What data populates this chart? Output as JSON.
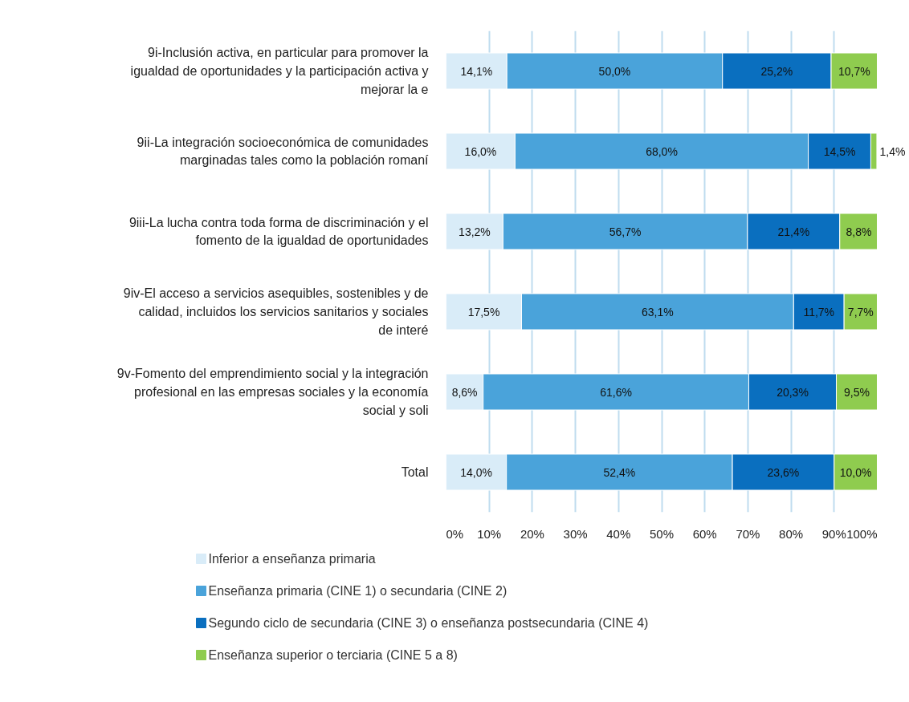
{
  "chart_data": {
    "type": "bar",
    "orientation": "horizontal",
    "stacked": true,
    "categories": [
      "9i-Inclusión activa, en particular para promover la igualdad de oportunidades y la participación activa y mejorar la e",
      "9ii-La integración socioeconómica de comunidades marginadas tales como la población romaní",
      "9iii-La lucha contra toda forma de discriminación y el fomento de la igualdad de oportunidades",
      "9iv-El acceso a servicios asequibles, sostenibles y de calidad, incluidos los servicios sanitarios y sociales de interé",
      "9v-Fomento del emprendimiento social y la integración profesional en las empresas sociales y la economía social y soli",
      "Total"
    ],
    "series": [
      {
        "name": "Inferior a enseñanza primaria",
        "color": "#d9ecf8",
        "values": [
          14.1,
          16.0,
          13.2,
          17.5,
          8.6,
          14.0
        ],
        "value_labels": [
          "14,1%",
          "16,0%",
          "13,2%",
          "17,5%",
          "8,6%",
          "14,0%"
        ]
      },
      {
        "name": "Enseñanza primaria (CINE 1) o secundaria (CINE 2)",
        "color": "#4aa3da",
        "values": [
          50.0,
          68.0,
          56.7,
          63.1,
          61.6,
          52.4
        ],
        "value_labels": [
          "50,0%",
          "68,0%",
          "56,7%",
          "63,1%",
          "61,6%",
          "52,4%"
        ]
      },
      {
        "name": "Segundo ciclo de secundaria (CINE 3) o enseñanza postsecundaria (CINE 4)",
        "color": "#0a6fbf",
        "values": [
          25.2,
          14.5,
          21.4,
          11.7,
          20.3,
          23.6
        ],
        "value_labels": [
          "25,2%",
          "14,5%",
          "21,4%",
          "11,7%",
          "20,3%",
          "23,6%"
        ]
      },
      {
        "name": "Enseñanza superior o terciaria (CINE 5 a 8)",
        "color": "#8fcc4f",
        "values": [
          10.7,
          1.4,
          8.8,
          7.7,
          9.5,
          10.0
        ],
        "value_labels": [
          "10,7%",
          "1,4%",
          "8,8%",
          "7,7%",
          "9,5%",
          "10,0%"
        ]
      }
    ],
    "xlim": [
      0,
      100
    ],
    "xticks": [
      {
        "value": 0,
        "label": "0%"
      },
      {
        "value": 10,
        "label": "10%"
      },
      {
        "value": 20,
        "label": "20%"
      },
      {
        "value": 30,
        "label": "30%"
      },
      {
        "value": 40,
        "label": "40%"
      },
      {
        "value": 50,
        "label": "50%"
      },
      {
        "value": 60,
        "label": "60%"
      },
      {
        "value": 70,
        "label": "70%"
      },
      {
        "value": 80,
        "label": "80%"
      },
      {
        "value": 90,
        "label": "90%"
      },
      {
        "value": 100,
        "label": "100%"
      }
    ],
    "grid": "x",
    "legend": "bottom"
  }
}
